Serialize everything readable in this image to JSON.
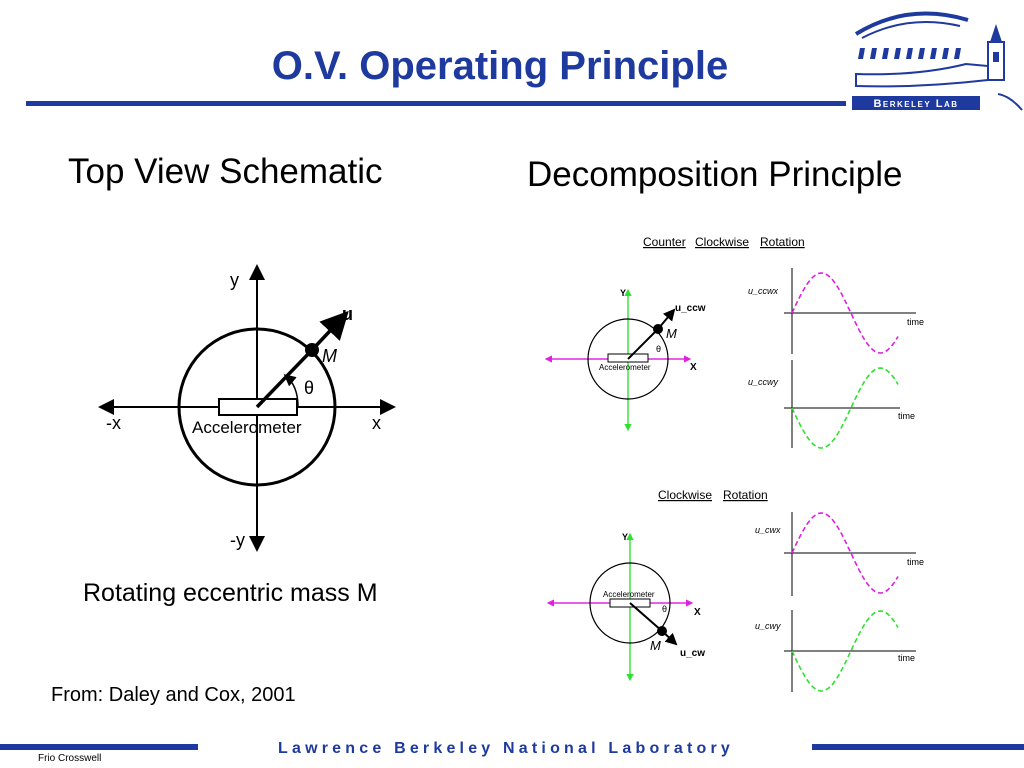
{
  "title": "O.V. Operating Principle",
  "logo": {
    "text": "Berkeley Lab",
    "color": "#1f3a9e"
  },
  "left_panel": {
    "heading": "Top View Schematic",
    "diagram": {
      "axis_y": "y",
      "axis_neg_y": "-y",
      "axis_x": "x",
      "axis_neg_x": "-x",
      "vector": "u",
      "mass": "M",
      "angle": "θ",
      "sensor": "Accelerometer"
    },
    "caption": "Rotating eccentric mass M"
  },
  "right_panel": {
    "heading": "Decomposition Principle",
    "ccw": {
      "title_words": [
        "Counter",
        "Clockwise",
        "Rotation"
      ],
      "axis_y": "Y",
      "axis_x": "X",
      "vector": "u_ccw",
      "mass": "M",
      "angle": "θ",
      "sensor": "Accelerometer",
      "plot1_label": "u_ccwx",
      "plot2_label": "u_ccwy",
      "time_label": "time"
    },
    "cw": {
      "title_words": [
        "Clockwise",
        "Rotation"
      ],
      "axis_y": "Y",
      "axis_x": "X",
      "vector": "u_cw",
      "mass": "M",
      "angle": "θ",
      "sensor": "Accelerometer",
      "plot1_label": "u_cwx",
      "plot2_label": "u_cwy",
      "time_label": "time"
    }
  },
  "source": "From: Daley and Cox, 2001",
  "footer": "Lawrence Berkeley National Laboratory",
  "author": "Frio Crosswell",
  "colors": {
    "title_blue": "#1f3a9e",
    "x_component": "#e020e0",
    "y_component": "#30e030"
  }
}
